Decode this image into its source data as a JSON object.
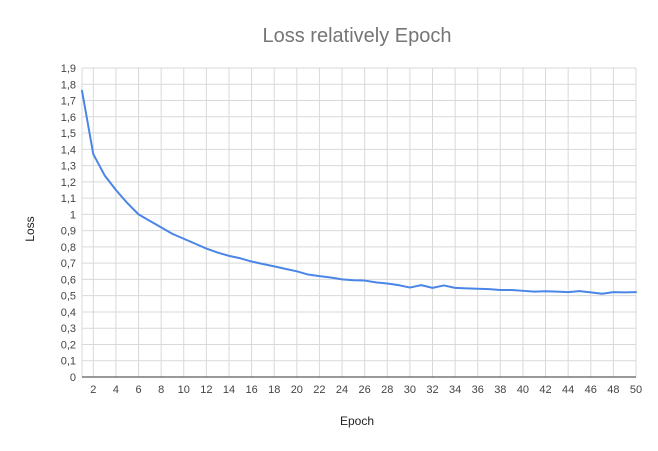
{
  "chart_data": {
    "type": "line",
    "title": "Loss relatively Epoch",
    "xlabel": "Epoch",
    "ylabel": "Loss",
    "xlim": [
      1,
      50
    ],
    "ylim": [
      0,
      1.9
    ],
    "x_ticks": [
      "2",
      "4",
      "6",
      "8",
      "10",
      "12",
      "14",
      "16",
      "18",
      "20",
      "22",
      "24",
      "26",
      "28",
      "30",
      "32",
      "34",
      "36",
      "38",
      "40",
      "42",
      "44",
      "46",
      "48",
      "50"
    ],
    "y_ticks": [
      "0",
      "0,1",
      "0,2",
      "0,3",
      "0,4",
      "0,5",
      "0,6",
      "0,7",
      "0,8",
      "0,9",
      "1",
      "1,1",
      "1,2",
      "1,3",
      "1,4",
      "1,5",
      "1,6",
      "1,7",
      "1,8",
      "1,9"
    ],
    "grid": true,
    "legend": "none",
    "series": [
      {
        "color": "#4a86e8",
        "x": [
          1,
          2,
          3,
          4,
          5,
          6,
          7,
          8,
          9,
          10,
          11,
          12,
          13,
          14,
          15,
          16,
          17,
          18,
          19,
          20,
          21,
          22,
          23,
          24,
          25,
          26,
          27,
          28,
          29,
          30,
          31,
          32,
          33,
          34,
          35,
          36,
          37,
          38,
          39,
          40,
          41,
          42,
          43,
          44,
          45,
          46,
          47,
          48,
          49,
          50
        ],
        "y": [
          1.76,
          1.37,
          1.24,
          1.15,
          1.07,
          1.0,
          0.96,
          0.92,
          0.88,
          0.85,
          0.82,
          0.79,
          0.765,
          0.745,
          0.73,
          0.71,
          0.695,
          0.68,
          0.665,
          0.65,
          0.63,
          0.62,
          0.612,
          0.6,
          0.595,
          0.593,
          0.582,
          0.575,
          0.565,
          0.55,
          0.565,
          0.548,
          0.563,
          0.548,
          0.545,
          0.543,
          0.54,
          0.535,
          0.535,
          0.53,
          0.525,
          0.527,
          0.525,
          0.522,
          0.528,
          0.52,
          0.512,
          0.522,
          0.52,
          0.522
        ]
      }
    ]
  }
}
